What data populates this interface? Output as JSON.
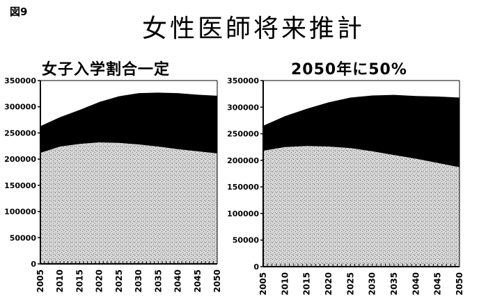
{
  "figure_label": "図9",
  "title": "女性医師将来推計",
  "chart_data": [
    {
      "type": "area",
      "stacked": true,
      "title": "女子入学割合一定",
      "xlabel": "",
      "ylabel": "",
      "x": [
        2005,
        2010,
        2015,
        2020,
        2025,
        2030,
        2035,
        2040,
        2045,
        2050
      ],
      "x_ticks": [
        "2005",
        "2010",
        "2015",
        "2020",
        "2025",
        "2030",
        "2035",
        "2040",
        "2045",
        "2050"
      ],
      "y_ticks": [
        "0",
        "50000",
        "100000",
        "150000",
        "200000",
        "250000",
        "300000",
        "350000"
      ],
      "ylim": [
        0,
        350000
      ],
      "grid": false,
      "legend": "none",
      "series": [
        {
          "color": "#c8c8c8",
          "values": [
            212000,
            224000,
            229000,
            232000,
            231000,
            228000,
            224000,
            219000,
            215000,
            211000
          ]
        },
        {
          "color": "#000000",
          "values": [
            51000,
            56000,
            65000,
            77000,
            89000,
            98000,
            103000,
            107000,
            108000,
            110000
          ]
        }
      ]
    },
    {
      "type": "area",
      "stacked": true,
      "title": "2050年に50%",
      "xlabel": "",
      "ylabel": "",
      "x": [
        2005,
        2010,
        2015,
        2020,
        2025,
        2030,
        2035,
        2040,
        2045,
        2050
      ],
      "x_ticks": [
        "2005",
        "2010",
        "2015",
        "2020",
        "2025",
        "2030",
        "2035",
        "2040",
        "2045",
        "2050"
      ],
      "y_ticks": [
        "0",
        "50000",
        "100000",
        "150000",
        "200000",
        "250000",
        "300000",
        "350000"
      ],
      "ylim": [
        0,
        350000
      ],
      "grid": false,
      "legend": "none",
      "series": [
        {
          "color": "#c8c8c8",
          "values": [
            218000,
            225000,
            227000,
            226000,
            223000,
            217000,
            210000,
            203000,
            195000,
            187000
          ]
        },
        {
          "color": "#000000",
          "values": [
            47000,
            58000,
            70000,
            83000,
            95000,
            105000,
            113000,
            118000,
            125000,
            131000
          ]
        }
      ]
    }
  ]
}
